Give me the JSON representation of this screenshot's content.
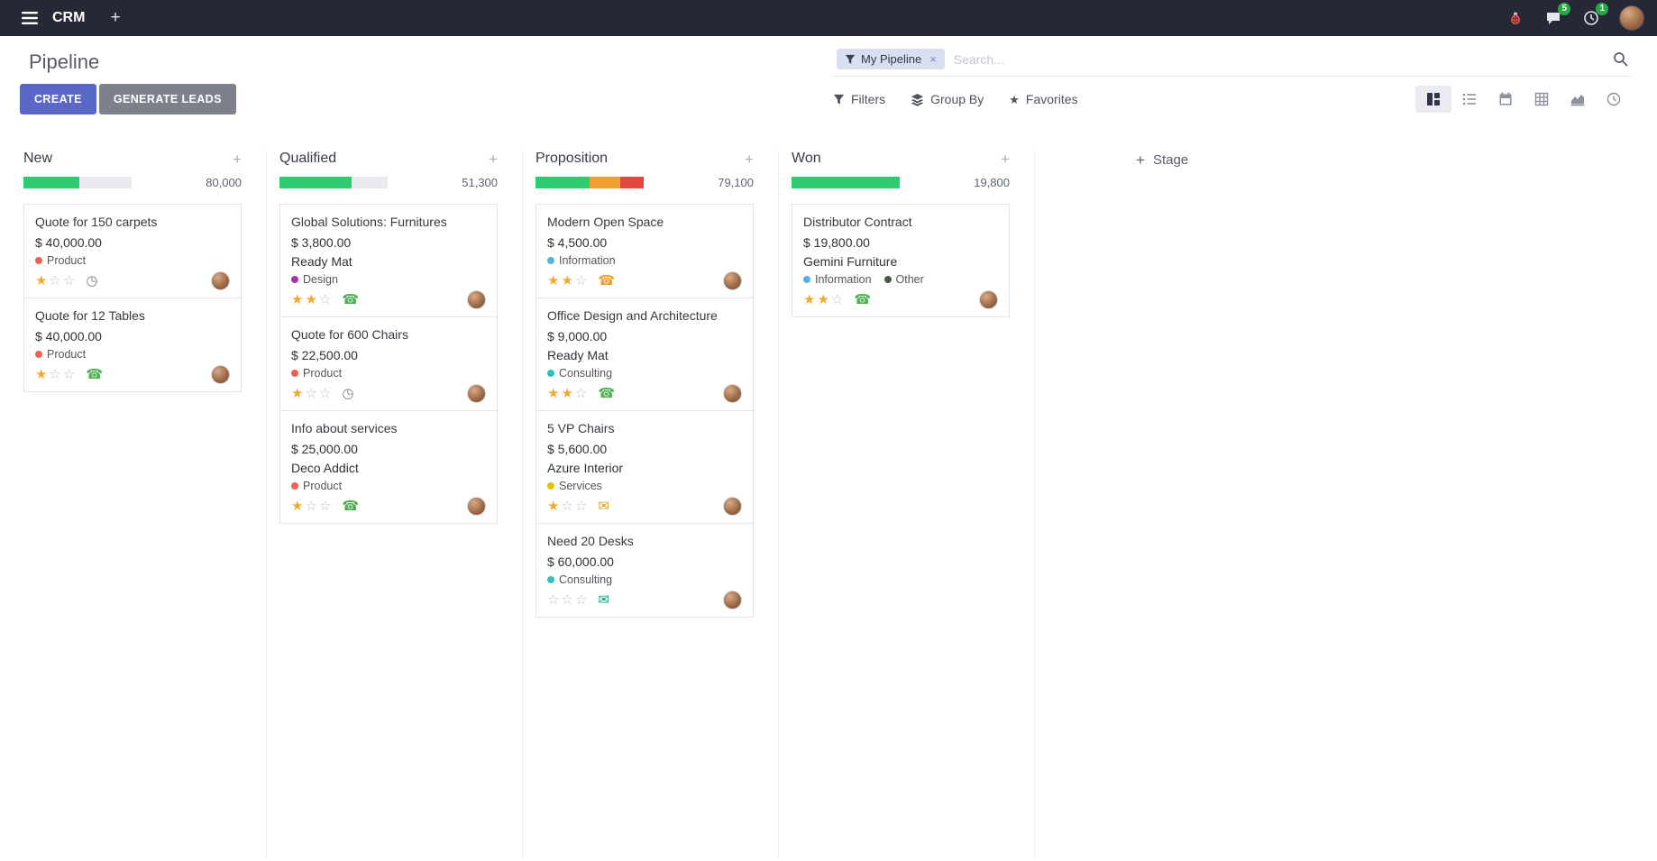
{
  "icons": {
    "plus": "+",
    "facet_remove": "×",
    "favorite_star": "★",
    "star_filled": "★",
    "star_empty": "☆",
    "phone": "☎",
    "clock": "◷",
    "envelope": "✉"
  },
  "topbar": {
    "app_name": "CRM",
    "message_badge": "5",
    "activity_badge": "1"
  },
  "control_panel": {
    "title": "Pipeline",
    "create_label": "CREATE",
    "generate_leads_label": "GENERATE LEADS",
    "filters_label": "Filters",
    "group_by_label": "Group By",
    "favorites_label": "Favorites",
    "search_placeholder": "Search...",
    "facet": {
      "label": "My Pipeline",
      "remove": "×"
    },
    "view_switcher": [
      "kanban",
      "list",
      "calendar",
      "pivot",
      "graph",
      "activity"
    ]
  },
  "kanban": {
    "add_stage_label": "Stage",
    "columns": [
      {
        "title": "New",
        "counter": "80,000",
        "segments": [
          {
            "pct": 52,
            "color": "#2ecc71"
          }
        ],
        "cards": [
          {
            "title": "Quote for 150 carpets",
            "amount": "$ 40,000.00",
            "partner": "",
            "tags": [
              {
                "label": "Product",
                "color": "#f06050"
              }
            ],
            "stars_filled": "★",
            "stars_empty": "☆☆",
            "activity": {
              "name": "clock-icon",
              "glyph": "◷",
              "color": "#7c7c7c"
            }
          },
          {
            "title": "Quote for 12 Tables",
            "amount": "$ 40,000.00",
            "partner": "",
            "tags": [
              {
                "label": "Product",
                "color": "#f06050"
              }
            ],
            "stars_filled": "★",
            "stars_empty": "☆☆",
            "activity": {
              "name": "phone-icon",
              "glyph": "☎",
              "color": "#4caf50"
            }
          }
        ]
      },
      {
        "title": "Qualified",
        "counter": "51,300",
        "segments": [
          {
            "pct": 67,
            "color": "#2ecc71"
          }
        ],
        "cards": [
          {
            "title": "Global Solutions: Furnitures",
            "amount": "$ 3,800.00",
            "partner": "Ready Mat",
            "tags": [
              {
                "label": "Design",
                "color": "#a835a8"
              }
            ],
            "stars_filled": "★★",
            "stars_empty": "☆",
            "activity": {
              "name": "phone-icon",
              "glyph": "☎",
              "color": "#4caf50"
            }
          },
          {
            "title": "Quote for 600 Chairs",
            "amount": "$ 22,500.00",
            "partner": "",
            "tags": [
              {
                "label": "Product",
                "color": "#f06050"
              }
            ],
            "stars_filled": "★",
            "stars_empty": "☆☆",
            "activity": {
              "name": "clock-icon",
              "glyph": "◷",
              "color": "#7c7c7c"
            }
          },
          {
            "title": "Info about services",
            "amount": "$ 25,000.00",
            "partner": "Deco Addict",
            "tags": [
              {
                "label": "Product",
                "color": "#f06050"
              }
            ],
            "stars_filled": "★",
            "stars_empty": "☆☆",
            "activity": {
              "name": "phone-icon",
              "glyph": "☎",
              "color": "#4caf50"
            }
          }
        ]
      },
      {
        "title": "Proposition",
        "counter": "79,100",
        "segments": [
          {
            "pct": 50,
            "color": "#2ecc71"
          },
          {
            "pct": 28,
            "color": "#f0a030"
          },
          {
            "pct": 22,
            "color": "#e2473d"
          }
        ],
        "cards": [
          {
            "title": "Modern Open Space",
            "amount": "$ 4,500.00",
            "partner": "",
            "tags": [
              {
                "label": "Information",
                "color": "#57b0e3"
              }
            ],
            "stars_filled": "★★",
            "stars_empty": "☆",
            "activity": {
              "name": "phone-icon",
              "glyph": "☎",
              "color": "#f0a030"
            }
          },
          {
            "title": "Office Design and Architecture",
            "amount": "$ 9,000.00",
            "partner": "Ready Mat",
            "tags": [
              {
                "label": "Consulting",
                "color": "#2fbfbf"
              }
            ],
            "stars_filled": "★★",
            "stars_empty": "☆",
            "activity": {
              "name": "phone-icon",
              "glyph": "☎",
              "color": "#4caf50"
            }
          },
          {
            "title": "5 VP Chairs",
            "amount": "$ 5,600.00",
            "partner": "Azure Interior",
            "tags": [
              {
                "label": "Services",
                "color": "#e8c100"
              }
            ],
            "stars_filled": "★",
            "stars_empty": "☆☆",
            "activity": {
              "name": "envelope-icon",
              "glyph": "✉",
              "color": "#d4a017"
            }
          },
          {
            "title": "Need 20 Desks",
            "amount": "$ 60,000.00",
            "partner": "",
            "tags": [
              {
                "label": "Consulting",
                "color": "#2fbfbf"
              }
            ],
            "stars_filled": "",
            "stars_empty": "☆☆☆",
            "activity": {
              "name": "envelope-icon",
              "glyph": "✉",
              "color": "#00a784"
            }
          }
        ]
      },
      {
        "title": "Won",
        "counter": "19,800",
        "segments": [
          {
            "pct": 100,
            "color": "#2ecc71"
          }
        ],
        "cards": [
          {
            "title": "Distributor Contract",
            "amount": "$ 19,800.00",
            "partner": "Gemini Furniture",
            "tags": [
              {
                "label": "Information",
                "color": "#57b0e3"
              },
              {
                "label": "Other",
                "color": "#4d584d"
              }
            ],
            "stars_filled": "★★",
            "stars_empty": "☆",
            "activity": {
              "name": "phone-icon",
              "glyph": "☎",
              "color": "#4caf50"
            }
          }
        ]
      }
    ]
  }
}
